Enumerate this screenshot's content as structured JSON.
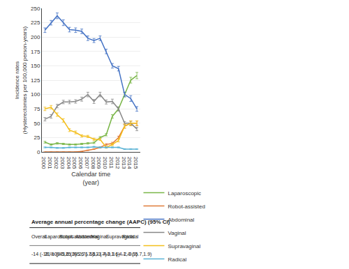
{
  "chart_data": {
    "type": "line",
    "x": [
      2000,
      2001,
      2002,
      2003,
      2004,
      2005,
      2006,
      2007,
      2008,
      2009,
      2010,
      2011,
      2012,
      2013,
      2014,
      2015
    ],
    "xlabel": "Calendar time\n(year)",
    "ylabel": "Incidence rates\n(Hysterectomies per 100,000 person-years)",
    "xlim": [
      1999.5,
      2015.5
    ],
    "xticks": [
      2000,
      2001,
      2002,
      2003,
      2004,
      2005,
      2006,
      2007,
      2008,
      2009,
      2010,
      2011,
      2012,
      2013,
      2014,
      2015
    ],
    "ylim": [
      0,
      250
    ],
    "yticks": [
      0,
      25,
      50,
      75,
      100,
      125,
      150,
      175,
      200,
      225,
      250
    ],
    "grid": "y",
    "legend": "bottom",
    "series": [
      {
        "name": "Laparoscopic",
        "color": "#7ab648",
        "values": [
          17,
          13,
          15,
          14,
          13,
          13,
          14,
          15,
          16,
          25,
          30,
          62,
          75,
          100,
          125,
          133
        ],
        "yerr": [
          1.5,
          1.2,
          1.3,
          1.2,
          1.1,
          1.1,
          1.2,
          1.3,
          1.3,
          1.8,
          2.0,
          3.0,
          3.5,
          4.0,
          5.0,
          5.5
        ]
      },
      {
        "name": "Robot-assisted",
        "color": "#e07b39",
        "values": [
          0,
          0,
          0,
          0,
          0,
          0,
          1,
          3,
          5,
          8,
          13,
          15,
          25,
          45,
          50,
          50
        ],
        "yerr": [
          0,
          0,
          0,
          0,
          0,
          0,
          0.3,
          0.5,
          0.7,
          1.0,
          1.5,
          2.0,
          2.5,
          3.5,
          4.0,
          4.0
        ]
      },
      {
        "name": "Abdominal",
        "color": "#4472c4",
        "values": [
          212,
          225,
          237,
          225,
          213,
          212,
          210,
          198,
          194,
          198,
          175,
          150,
          145,
          100,
          93,
          75
        ],
        "yerr": [
          4,
          4,
          5,
          5,
          4,
          4,
          4,
          4,
          3.5,
          4,
          4,
          4,
          4,
          4,
          5,
          4
        ]
      },
      {
        "name": "Vaginal",
        "color": "#888888",
        "values": [
          57,
          62,
          80,
          87,
          87,
          88,
          92,
          100,
          88,
          100,
          87,
          88,
          75,
          50,
          50,
          40
        ],
        "yerr": [
          3,
          3,
          3,
          3,
          3,
          3,
          3.5,
          4,
          3.5,
          4,
          3.5,
          4,
          3.5,
          3,
          3.5,
          3
        ]
      },
      {
        "name": "Supravaginal",
        "color": "#f4bf1c",
        "values": [
          75,
          78,
          65,
          55,
          38,
          34,
          28,
          27,
          22,
          22,
          8,
          13,
          20,
          45,
          50,
          50
        ],
        "yerr": [
          3,
          3,
          3,
          3,
          2.5,
          2.5,
          2,
          2,
          2,
          2,
          1.5,
          2,
          2.5,
          3.5,
          4,
          4
        ]
      },
      {
        "name": "Radical",
        "color": "#5ab3d5",
        "values": [
          8,
          8,
          7,
          7,
          8,
          8,
          8,
          8,
          9,
          8,
          8,
          8,
          8,
          5,
          5,
          5
        ],
        "yerr": [
          0.8,
          0.8,
          0.8,
          0.8,
          0.8,
          0.8,
          0.8,
          0.8,
          0.9,
          0.8,
          0.8,
          0.8,
          0.8,
          0.7,
          0.7,
          0.7
        ]
      }
    ],
    "table": {
      "title": "Average annual percentage change (AAPC) (95% CI)",
      "headers": [
        "Overall",
        "Laparoscopic",
        "Robot-assistedᵃ",
        "Abdominal",
        "Vaginal",
        "Supravaginal",
        "Radical"
      ],
      "values": [
        "-14 (-18,-10)",
        "21% (8.5,25.9)",
        "43.6 (20.2,71.6)",
        "-5.6 (-7.5,-3.7)",
        "-13 (-4.3,1.6)",
        "-0.3 (-4.1,-0.5)",
        "-2.0 (-5.7,1.9)"
      ]
    }
  }
}
